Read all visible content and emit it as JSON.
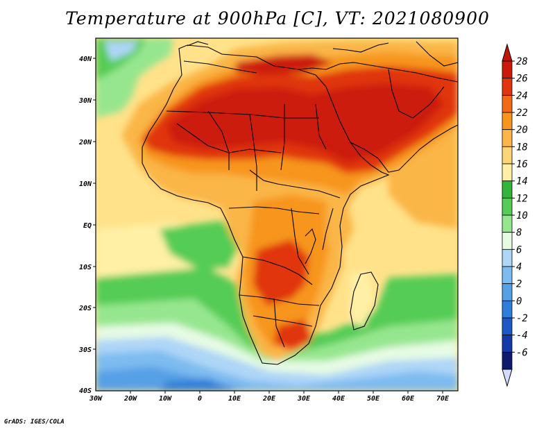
{
  "title": "Temperature at 900hPa [C], VT: 2021080900",
  "credit": "GrADS: IGES/COLA",
  "map": {
    "x_ticks": [
      "30W",
      "20W",
      "10W",
      "0",
      "10E",
      "20E",
      "30E",
      "40E",
      "50E",
      "60E",
      "70E"
    ],
    "y_ticks": [
      "40N",
      "30N",
      "20N",
      "10N",
      "EQ",
      "10S",
      "20S",
      "30S",
      "40S"
    ],
    "lon_range": [
      -30,
      75
    ],
    "lat_range": [
      -40,
      45
    ],
    "ocean_color": "#ffe28a"
  },
  "colorbar": {
    "labels": [
      "28",
      "26",
      "24",
      "22",
      "20",
      "18",
      "16",
      "14",
      "12",
      "10",
      "8",
      "6",
      "4",
      "2",
      "0",
      "-2",
      "-4",
      "-6"
    ],
    "colors": [
      "#cc1a0a",
      "#e0350d",
      "#f26a14",
      "#f7951e",
      "#fab646",
      "#fcd577",
      "#fff0a6",
      "#31b53a",
      "#55cc55",
      "#96e68f",
      "#e6fbe4",
      "#aed6f7",
      "#7dbbf0",
      "#56a0e6",
      "#2f7ed9",
      "#1e58c7",
      "#143aa8",
      "#0d1a6e"
    ],
    "top_color": "#c21506",
    "bottom_color": "#d6dcff"
  }
}
